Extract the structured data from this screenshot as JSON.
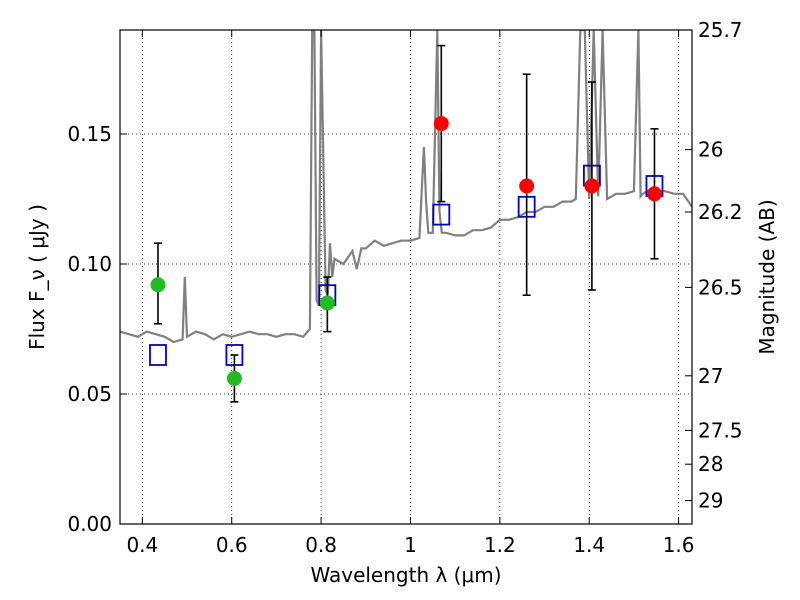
{
  "chart_data": {
    "type": "scatter",
    "xlabel": "Wavelength  λ (μm)",
    "ylabel": "Flux  F_ν  ( μJy )",
    "ylabel_right": "Magnitude (AB)",
    "xlim": [
      0.35,
      1.63
    ],
    "ylim": [
      0.0,
      0.19
    ],
    "grid": true,
    "x_ticks": [
      0.4,
      0.6,
      0.8,
      1.0,
      1.2,
      1.4,
      1.6
    ],
    "x_tick_labels": [
      "0.4",
      "0.6",
      "0.8",
      "1",
      "1.2",
      "1.4",
      "1.6"
    ],
    "y_ticks": [
      0.0,
      0.05,
      0.1,
      0.15
    ],
    "y_tick_labels": [
      "0.00",
      "0.05",
      "0.10",
      "0.15"
    ],
    "right_ticks": [
      {
        "label": "25.7",
        "flux": 0.19
      },
      {
        "label": "26",
        "flux": 0.144
      },
      {
        "label": "26.2",
        "flux": 0.12
      },
      {
        "label": "26.5",
        "flux": 0.091
      },
      {
        "label": "27",
        "flux": 0.057
      },
      {
        "label": "27.5",
        "flux": 0.036
      },
      {
        "label": "28",
        "flux": 0.023
      },
      {
        "label": "29",
        "flux": 0.009
      }
    ],
    "template_spectrum": {
      "color": "#808080",
      "x": [
        0.35,
        0.37,
        0.39,
        0.41,
        0.43,
        0.45,
        0.47,
        0.49,
        0.495,
        0.5,
        0.52,
        0.54,
        0.56,
        0.58,
        0.6,
        0.62,
        0.64,
        0.66,
        0.68,
        0.7,
        0.72,
        0.74,
        0.76,
        0.775,
        0.78,
        0.785,
        0.79,
        0.795,
        0.8,
        0.81,
        0.815,
        0.82,
        0.825,
        0.83,
        0.85,
        0.87,
        0.88,
        0.89,
        0.9,
        0.92,
        0.94,
        0.96,
        0.98,
        1.0,
        1.02,
        1.03,
        1.035,
        1.04,
        1.05,
        1.06,
        1.065,
        1.07,
        1.08,
        1.1,
        1.12,
        1.14,
        1.16,
        1.18,
        1.2,
        1.22,
        1.24,
        1.26,
        1.28,
        1.3,
        1.32,
        1.34,
        1.36,
        1.37,
        1.38,
        1.385,
        1.39,
        1.4,
        1.41,
        1.42,
        1.43,
        1.44,
        1.45,
        1.46,
        1.47,
        1.48,
        1.5,
        1.51,
        1.515,
        1.52,
        1.53,
        1.55,
        1.57,
        1.59,
        1.61,
        1.63
      ],
      "y": [
        0.074,
        0.073,
        0.072,
        0.074,
        0.073,
        0.072,
        0.07,
        0.071,
        0.095,
        0.072,
        0.074,
        0.073,
        0.071,
        0.073,
        0.072,
        0.073,
        0.074,
        0.073,
        0.073,
        0.072,
        0.073,
        0.073,
        0.072,
        0.075,
        0.19,
        0.19,
        0.086,
        0.084,
        0.19,
        0.09,
        0.088,
        0.108,
        0.095,
        0.102,
        0.1,
        0.105,
        0.098,
        0.106,
        0.106,
        0.109,
        0.107,
        0.108,
        0.109,
        0.109,
        0.11,
        0.145,
        0.124,
        0.112,
        0.112,
        0.19,
        0.12,
        0.112,
        0.112,
        0.111,
        0.111,
        0.113,
        0.113,
        0.114,
        0.117,
        0.117,
        0.118,
        0.12,
        0.12,
        0.122,
        0.122,
        0.124,
        0.124,
        0.125,
        0.19,
        0.19,
        0.19,
        0.125,
        0.19,
        0.126,
        0.19,
        0.125,
        0.126,
        0.127,
        0.127,
        0.127,
        0.128,
        0.19,
        0.126,
        0.127,
        0.128,
        0.128,
        0.128,
        0.127,
        0.127,
        0.122
      ]
    },
    "observed": [
      {
        "x": 0.435,
        "y": 0.092,
        "err_low": 0.077,
        "err_high": 0.108,
        "color": "#22bb22"
      },
      {
        "x": 0.606,
        "y": 0.056,
        "err_low": 0.047,
        "err_high": 0.065,
        "color": "#22bb22"
      },
      {
        "x": 0.814,
        "y": 0.085,
        "err_low": 0.074,
        "err_high": 0.095,
        "color": "#22bb22"
      },
      {
        "x": 1.069,
        "y": 0.154,
        "err_low": 0.124,
        "err_high": 0.184,
        "color": "#ff0000"
      },
      {
        "x": 1.26,
        "y": 0.13,
        "err_low": 0.088,
        "err_high": 0.173,
        "color": "#ff0000"
      },
      {
        "x": 1.406,
        "y": 0.13,
        "err_low": 0.09,
        "err_high": 0.17,
        "color": "#ff0000"
      },
      {
        "x": 1.546,
        "y": 0.127,
        "err_low": 0.102,
        "err_high": 0.152,
        "color": "#ff0000"
      }
    ],
    "model": {
      "color": "#0000cc",
      "x": [
        0.435,
        0.606,
        0.814,
        1.069,
        1.26,
        1.406,
        1.546
      ],
      "y": [
        0.065,
        0.065,
        0.088,
        0.119,
        0.122,
        0.134,
        0.13
      ]
    }
  }
}
